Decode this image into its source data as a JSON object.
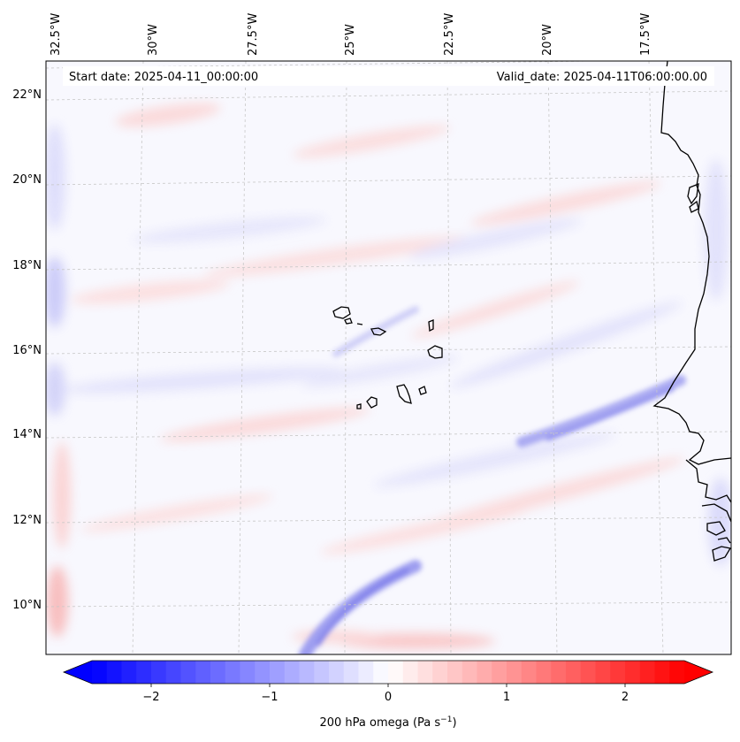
{
  "header": {
    "start_date": "Start date: 2025-04-11_00:00:00",
    "valid_date": "Valid_date: 2025-04-11T06:00:00.00"
  },
  "map": {
    "longitude_labels": [
      "32.5°W",
      "30°W",
      "27.5°W",
      "25°W",
      "22.5°W",
      "20°W",
      "17.5°W"
    ],
    "latitude_labels": [
      "22°N",
      "20°N",
      "18°N",
      "16°N",
      "14°N",
      "12°N",
      "10°N"
    ],
    "gridlines": "on, dashed light gray",
    "coastlines": "black",
    "colormap": "bwr (blue-white-red), symmetric about 0"
  },
  "colorbar": {
    "label_prefix": "200 hPa omega (Pa s",
    "label_exp": "−1",
    "label_suffix": ")",
    "ticks": [
      "−2",
      "−1",
      "0",
      "1",
      "2"
    ],
    "tick_values": [
      -2,
      -1,
      0,
      1,
      2
    ],
    "range": [
      -2.5,
      2.5
    ],
    "extend": "both",
    "low_color": "#0000ff",
    "mid_color": "#ffffff",
    "high_color": "#ff0000"
  }
}
